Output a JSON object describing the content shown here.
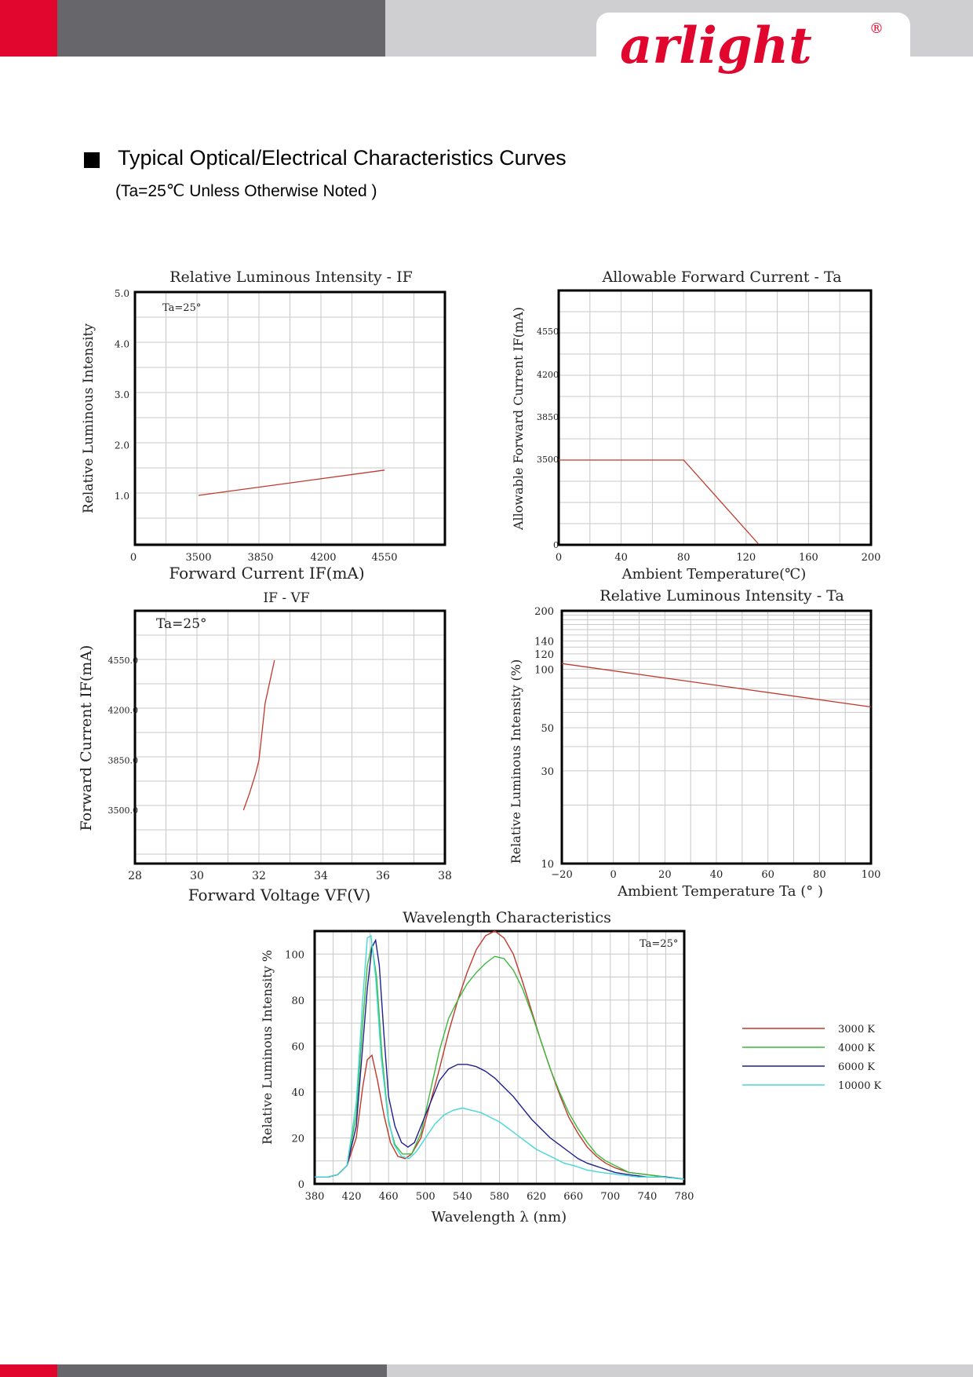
{
  "brand": {
    "name": "arlight",
    "registered_mark": "®"
  },
  "heading": {
    "title": "Typical Optical/Electrical Characteristics Curves",
    "subtitle": "(Ta=25℃ Unless Otherwise Noted )"
  },
  "colors": {
    "brand_red": "#e1062d",
    "band_dark": "#67666b",
    "band_light": "#cfcfd2"
  },
  "chart_data": [
    {
      "id": "c1",
      "type": "line",
      "title": "Relative Luminous Intensity - IF",
      "xlabel": "Forward Current IF(mA)",
      "ylabel": "Relative Luminous Intensity",
      "note": "Ta=25°",
      "grid": true,
      "x_ticks": [
        "0",
        "3500",
        "3850",
        "4200",
        "4550"
      ],
      "y_ticks": [
        "1.0",
        "2.0",
        "3.0",
        "4.0",
        "5.0"
      ],
      "series": [
        {
          "color": "#c0392b",
          "points": [
            [
              3500,
              1.0
            ],
            [
              4550,
              1.5
            ]
          ]
        }
      ]
    },
    {
      "id": "c2",
      "type": "line",
      "title": "Allowable Forward Current - Ta",
      "xlabel": "Ambient Temperature(℃)",
      "ylabel": "Allowable Forward Current IF(mA)",
      "grid": true,
      "x_ticks": [
        "0",
        "40",
        "80",
        "120",
        "160",
        "200"
      ],
      "y_ticks": [
        "0",
        "3500",
        "3850",
        "4200",
        "4550"
      ],
      "xlim": [
        0,
        200
      ],
      "series": [
        {
          "color": "#c0392b",
          "points": [
            [
              0,
              3500
            ],
            [
              80,
              3500
            ],
            [
              128,
              0
            ]
          ]
        }
      ]
    },
    {
      "id": "c3",
      "type": "line",
      "title": "IF - VF",
      "xlabel": "Forward Voltage VF(V)",
      "ylabel": "Forward Current IF(mA)",
      "note": "Ta=25°",
      "grid": true,
      "x_ticks": [
        "28",
        "30",
        "32",
        "34",
        "36",
        "38"
      ],
      "y_ticks": [
        "3500.0",
        "3850.0",
        "4200.0",
        "4550.0"
      ],
      "xlim": [
        28,
        38
      ],
      "series": [
        {
          "color": "#c0392b",
          "points": [
            [
              31.5,
              3500
            ],
            [
              31.7,
              3620
            ],
            [
              31.9,
              3760
            ],
            [
              32.0,
              3850
            ],
            [
              32.1,
              4050
            ],
            [
              32.2,
              4250
            ],
            [
              32.5,
              4550
            ]
          ]
        }
      ]
    },
    {
      "id": "c4",
      "type": "line",
      "title": "Relative Luminous Intensity - Ta",
      "xlabel": "Ambient Temperature Ta (° )",
      "ylabel": "Relative Luminous Intensity (%)",
      "grid": true,
      "log_y": true,
      "x_ticks": [
        "−20",
        "0",
        "20",
        "40",
        "60",
        "80",
        "100"
      ],
      "y_ticks": [
        "10",
        "30",
        "50",
        "100",
        "120",
        "140",
        "200"
      ],
      "xlim": [
        -20,
        100
      ],
      "ylim": [
        10,
        200
      ],
      "series": [
        {
          "color": "#c0392b",
          "points": [
            [
              -20,
              107
            ],
            [
              100,
              64
            ]
          ]
        }
      ]
    },
    {
      "id": "c5",
      "type": "line",
      "title": "Wavelength Characteristics",
      "xlabel": "Wavelength λ (nm)",
      "ylabel": "Relative Luminous Intensity %",
      "note": "Ta=25°",
      "grid": true,
      "xlim": [
        380,
        780
      ],
      "ylim": [
        0,
        110
      ],
      "legend_position": "right",
      "x_ticks": [
        "380",
        "420",
        "460",
        "500",
        "540",
        "580",
        "620",
        "660",
        "700",
        "740",
        "780"
      ],
      "y_ticks": [
        "0",
        "20",
        "40",
        "60",
        "80",
        "100"
      ],
      "series": [
        {
          "name": "3000 K",
          "color": "#c0392b",
          "points": [
            [
              380,
              3
            ],
            [
              395,
              3
            ],
            [
              405,
              4
            ],
            [
              415,
              8
            ],
            [
              425,
              20
            ],
            [
              432,
              42
            ],
            [
              437,
              54
            ],
            [
              442,
              56
            ],
            [
              448,
              45
            ],
            [
              455,
              30
            ],
            [
              462,
              18
            ],
            [
              470,
              12
            ],
            [
              478,
              11
            ],
            [
              485,
              13
            ],
            [
              495,
              20
            ],
            [
              505,
              35
            ],
            [
              515,
              50
            ],
            [
              525,
              66
            ],
            [
              535,
              80
            ],
            [
              545,
              92
            ],
            [
              555,
              102
            ],
            [
              565,
              108
            ],
            [
              575,
              110
            ],
            [
              585,
              107
            ],
            [
              595,
              100
            ],
            [
              605,
              88
            ],
            [
              615,
              75
            ],
            [
              625,
              62
            ],
            [
              635,
              50
            ],
            [
              645,
              39
            ],
            [
              655,
              29
            ],
            [
              665,
              22
            ],
            [
              675,
              16
            ],
            [
              685,
              12
            ],
            [
              695,
              9
            ],
            [
              705,
              7
            ],
            [
              720,
              5
            ],
            [
              740,
              4
            ],
            [
              760,
              3
            ],
            [
              780,
              2
            ]
          ]
        },
        {
          "name": "4000 K",
          "color": "#3cb93c",
          "points": [
            [
              380,
              3
            ],
            [
              395,
              3
            ],
            [
              405,
              4
            ],
            [
              415,
              8
            ],
            [
              425,
              30
            ],
            [
              432,
              70
            ],
            [
              437,
              95
            ],
            [
              442,
              104
            ],
            [
              447,
              90
            ],
            [
              453,
              55
            ],
            [
              460,
              27
            ],
            [
              467,
              17
            ],
            [
              475,
              13
            ],
            [
              485,
              13
            ],
            [
              495,
              22
            ],
            [
              505,
              40
            ],
            [
              515,
              58
            ],
            [
              525,
              72
            ],
            [
              535,
              80
            ],
            [
              545,
              87
            ],
            [
              555,
              92
            ],
            [
              565,
              96
            ],
            [
              575,
              99
            ],
            [
              585,
              98
            ],
            [
              595,
              93
            ],
            [
              605,
              85
            ],
            [
              615,
              74
            ],
            [
              625,
              62
            ],
            [
              635,
              50
            ],
            [
              645,
              40
            ],
            [
              655,
              31
            ],
            [
              665,
              24
            ],
            [
              675,
              18
            ],
            [
              685,
              13
            ],
            [
              695,
              10
            ],
            [
              705,
              8
            ],
            [
              720,
              5
            ],
            [
              740,
              4
            ],
            [
              760,
              3
            ],
            [
              780,
              2
            ]
          ]
        },
        {
          "name": "6000 K",
          "color": "#1f1f8f",
          "points": [
            [
              380,
              3
            ],
            [
              395,
              3
            ],
            [
              405,
              4
            ],
            [
              415,
              8
            ],
            [
              425,
              25
            ],
            [
              432,
              60
            ],
            [
              437,
              85
            ],
            [
              442,
              103
            ],
            [
              446,
              106
            ],
            [
              450,
              95
            ],
            [
              455,
              65
            ],
            [
              460,
              38
            ],
            [
              467,
              25
            ],
            [
              474,
              18
            ],
            [
              481,
              16
            ],
            [
              488,
              18
            ],
            [
              495,
              25
            ],
            [
              505,
              35
            ],
            [
              515,
              45
            ],
            [
              525,
              50
            ],
            [
              535,
              52
            ],
            [
              545,
              52
            ],
            [
              555,
              51
            ],
            [
              565,
              49
            ],
            [
              575,
              46
            ],
            [
              585,
              42
            ],
            [
              595,
              38
            ],
            [
              605,
              33
            ],
            [
              615,
              28
            ],
            [
              625,
              24
            ],
            [
              635,
              20
            ],
            [
              645,
              17
            ],
            [
              655,
              14
            ],
            [
              665,
              11
            ],
            [
              675,
              9
            ],
            [
              690,
              7
            ],
            [
              705,
              5
            ],
            [
              720,
              4
            ],
            [
              740,
              3
            ],
            [
              760,
              3
            ],
            [
              780,
              2
            ]
          ]
        },
        {
          "name": "10000 K",
          "color": "#44d8d8",
          "points": [
            [
              380,
              3
            ],
            [
              395,
              3
            ],
            [
              405,
              4
            ],
            [
              415,
              8
            ],
            [
              425,
              35
            ],
            [
              432,
              80
            ],
            [
              437,
              107
            ],
            [
              441,
              108
            ],
            [
              446,
              90
            ],
            [
              452,
              55
            ],
            [
              459,
              30
            ],
            [
              466,
              17
            ],
            [
              474,
              12
            ],
            [
              482,
              11
            ],
            [
              490,
              14
            ],
            [
              500,
              20
            ],
            [
              510,
              26
            ],
            [
              520,
              30
            ],
            [
              530,
              32
            ],
            [
              540,
              33
            ],
            [
              550,
              32
            ],
            [
              560,
              31
            ],
            [
              570,
              29
            ],
            [
              580,
              27
            ],
            [
              590,
              24
            ],
            [
              600,
              21
            ],
            [
              610,
              18
            ],
            [
              620,
              15
            ],
            [
              630,
              13
            ],
            [
              640,
              11
            ],
            [
              650,
              9
            ],
            [
              660,
              8
            ],
            [
              675,
              6
            ],
            [
              690,
              5
            ],
            [
              710,
              4
            ],
            [
              730,
              3
            ],
            [
              755,
              3
            ],
            [
              780,
              2
            ]
          ]
        }
      ]
    }
  ]
}
